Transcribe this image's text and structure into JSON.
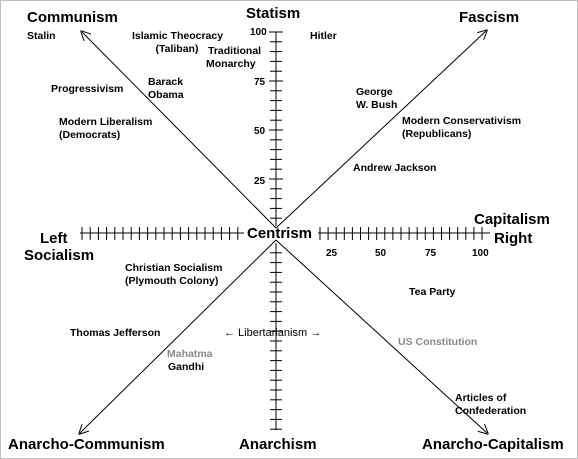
{
  "corners": {
    "top_left": "Communism",
    "top_right": "Fascism",
    "bottom_left": "Anarcho-Communism",
    "bottom_right": "Anarcho-Capitalism"
  },
  "axes": {
    "top": "Statism",
    "bottom": "Anarchism",
    "center": "Centrism",
    "left_line1": "Left",
    "left_line2": "Socialism",
    "right_line1": "Capitalism",
    "right_line2": "Right",
    "libertarianism": "← Libertarianism →"
  },
  "vertical_ticks": [
    "100",
    "75",
    "50",
    "25"
  ],
  "horizontal_ticks": [
    "25",
    "50",
    "75",
    "100"
  ],
  "points": {
    "stalin": "Stalin",
    "islamic_theocracy_1": "Islamic Theocracy",
    "islamic_theocracy_2": "(Taliban)",
    "traditional_monarchy_1": "Traditional",
    "traditional_monarchy_2": "Monarchy",
    "hitler": "Hitler",
    "progressivism": "Progressivism",
    "barack_obama_1": "Barack",
    "barack_obama_2": "Obama",
    "modern_liberalism_1": "Modern Liberalism",
    "modern_liberalism_2": "(Democrats)",
    "george_bush_1": "George",
    "george_bush_2": "W. Bush",
    "modern_conservativism_1": "Modern Conservativism",
    "modern_conservativism_2": "(Republicans)",
    "andrew_jackson": "Andrew Jackson",
    "christian_socialism_1": "Christian Socialism",
    "christian_socialism_2": "(Plymouth Colony)",
    "tea_party": "Tea Party",
    "thomas_jefferson": "Thomas Jefferson",
    "us_constitution": "US Constitution",
    "mahatma": "Mahatma",
    "gandhi": "Gandhi",
    "articles_1": "Articles of",
    "articles_2": "Confederation"
  },
  "colors": {
    "line": "#000000",
    "gray_label": "#8a8a8a"
  }
}
